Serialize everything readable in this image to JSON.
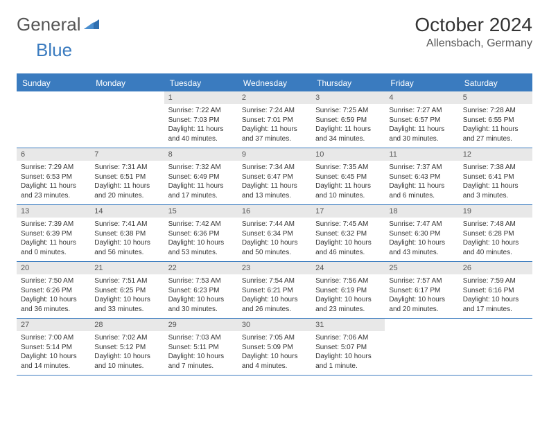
{
  "logo": {
    "part1": "General",
    "part2": "Blue"
  },
  "title": "October 2024",
  "location": "Allensbach, Germany",
  "colors": {
    "accent": "#3a7bbf",
    "header_bg": "#3a7bbf",
    "header_text": "#ffffff",
    "daynum_bg": "#e8e8e8",
    "text": "#333333",
    "subtext": "#555555",
    "background": "#ffffff"
  },
  "day_names": [
    "Sunday",
    "Monday",
    "Tuesday",
    "Wednesday",
    "Thursday",
    "Friday",
    "Saturday"
  ],
  "layout": {
    "columns": 7,
    "rows": 5,
    "first_day_column_index": 2,
    "fontsize_title": 28,
    "fontsize_location": 16,
    "fontsize_dayheader": 12,
    "fontsize_daynum": 11,
    "fontsize_body": 10
  },
  "days": [
    {
      "n": "1",
      "sunrise": "Sunrise: 7:22 AM",
      "sunset": "Sunset: 7:03 PM",
      "daylight": "Daylight: 11 hours and 40 minutes."
    },
    {
      "n": "2",
      "sunrise": "Sunrise: 7:24 AM",
      "sunset": "Sunset: 7:01 PM",
      "daylight": "Daylight: 11 hours and 37 minutes."
    },
    {
      "n": "3",
      "sunrise": "Sunrise: 7:25 AM",
      "sunset": "Sunset: 6:59 PM",
      "daylight": "Daylight: 11 hours and 34 minutes."
    },
    {
      "n": "4",
      "sunrise": "Sunrise: 7:27 AM",
      "sunset": "Sunset: 6:57 PM",
      "daylight": "Daylight: 11 hours and 30 minutes."
    },
    {
      "n": "5",
      "sunrise": "Sunrise: 7:28 AM",
      "sunset": "Sunset: 6:55 PM",
      "daylight": "Daylight: 11 hours and 27 minutes."
    },
    {
      "n": "6",
      "sunrise": "Sunrise: 7:29 AM",
      "sunset": "Sunset: 6:53 PM",
      "daylight": "Daylight: 11 hours and 23 minutes."
    },
    {
      "n": "7",
      "sunrise": "Sunrise: 7:31 AM",
      "sunset": "Sunset: 6:51 PM",
      "daylight": "Daylight: 11 hours and 20 minutes."
    },
    {
      "n": "8",
      "sunrise": "Sunrise: 7:32 AM",
      "sunset": "Sunset: 6:49 PM",
      "daylight": "Daylight: 11 hours and 17 minutes."
    },
    {
      "n": "9",
      "sunrise": "Sunrise: 7:34 AM",
      "sunset": "Sunset: 6:47 PM",
      "daylight": "Daylight: 11 hours and 13 minutes."
    },
    {
      "n": "10",
      "sunrise": "Sunrise: 7:35 AM",
      "sunset": "Sunset: 6:45 PM",
      "daylight": "Daylight: 11 hours and 10 minutes."
    },
    {
      "n": "11",
      "sunrise": "Sunrise: 7:37 AM",
      "sunset": "Sunset: 6:43 PM",
      "daylight": "Daylight: 11 hours and 6 minutes."
    },
    {
      "n": "12",
      "sunrise": "Sunrise: 7:38 AM",
      "sunset": "Sunset: 6:41 PM",
      "daylight": "Daylight: 11 hours and 3 minutes."
    },
    {
      "n": "13",
      "sunrise": "Sunrise: 7:39 AM",
      "sunset": "Sunset: 6:39 PM",
      "daylight": "Daylight: 11 hours and 0 minutes."
    },
    {
      "n": "14",
      "sunrise": "Sunrise: 7:41 AM",
      "sunset": "Sunset: 6:38 PM",
      "daylight": "Daylight: 10 hours and 56 minutes."
    },
    {
      "n": "15",
      "sunrise": "Sunrise: 7:42 AM",
      "sunset": "Sunset: 6:36 PM",
      "daylight": "Daylight: 10 hours and 53 minutes."
    },
    {
      "n": "16",
      "sunrise": "Sunrise: 7:44 AM",
      "sunset": "Sunset: 6:34 PM",
      "daylight": "Daylight: 10 hours and 50 minutes."
    },
    {
      "n": "17",
      "sunrise": "Sunrise: 7:45 AM",
      "sunset": "Sunset: 6:32 PM",
      "daylight": "Daylight: 10 hours and 46 minutes."
    },
    {
      "n": "18",
      "sunrise": "Sunrise: 7:47 AM",
      "sunset": "Sunset: 6:30 PM",
      "daylight": "Daylight: 10 hours and 43 minutes."
    },
    {
      "n": "19",
      "sunrise": "Sunrise: 7:48 AM",
      "sunset": "Sunset: 6:28 PM",
      "daylight": "Daylight: 10 hours and 40 minutes."
    },
    {
      "n": "20",
      "sunrise": "Sunrise: 7:50 AM",
      "sunset": "Sunset: 6:26 PM",
      "daylight": "Daylight: 10 hours and 36 minutes."
    },
    {
      "n": "21",
      "sunrise": "Sunrise: 7:51 AM",
      "sunset": "Sunset: 6:25 PM",
      "daylight": "Daylight: 10 hours and 33 minutes."
    },
    {
      "n": "22",
      "sunrise": "Sunrise: 7:53 AM",
      "sunset": "Sunset: 6:23 PM",
      "daylight": "Daylight: 10 hours and 30 minutes."
    },
    {
      "n": "23",
      "sunrise": "Sunrise: 7:54 AM",
      "sunset": "Sunset: 6:21 PM",
      "daylight": "Daylight: 10 hours and 26 minutes."
    },
    {
      "n": "24",
      "sunrise": "Sunrise: 7:56 AM",
      "sunset": "Sunset: 6:19 PM",
      "daylight": "Daylight: 10 hours and 23 minutes."
    },
    {
      "n": "25",
      "sunrise": "Sunrise: 7:57 AM",
      "sunset": "Sunset: 6:17 PM",
      "daylight": "Daylight: 10 hours and 20 minutes."
    },
    {
      "n": "26",
      "sunrise": "Sunrise: 7:59 AM",
      "sunset": "Sunset: 6:16 PM",
      "daylight": "Daylight: 10 hours and 17 minutes."
    },
    {
      "n": "27",
      "sunrise": "Sunrise: 7:00 AM",
      "sunset": "Sunset: 5:14 PM",
      "daylight": "Daylight: 10 hours and 14 minutes."
    },
    {
      "n": "28",
      "sunrise": "Sunrise: 7:02 AM",
      "sunset": "Sunset: 5:12 PM",
      "daylight": "Daylight: 10 hours and 10 minutes."
    },
    {
      "n": "29",
      "sunrise": "Sunrise: 7:03 AM",
      "sunset": "Sunset: 5:11 PM",
      "daylight": "Daylight: 10 hours and 7 minutes."
    },
    {
      "n": "30",
      "sunrise": "Sunrise: 7:05 AM",
      "sunset": "Sunset: 5:09 PM",
      "daylight": "Daylight: 10 hours and 4 minutes."
    },
    {
      "n": "31",
      "sunrise": "Sunrise: 7:06 AM",
      "sunset": "Sunset: 5:07 PM",
      "daylight": "Daylight: 10 hours and 1 minute."
    }
  ]
}
